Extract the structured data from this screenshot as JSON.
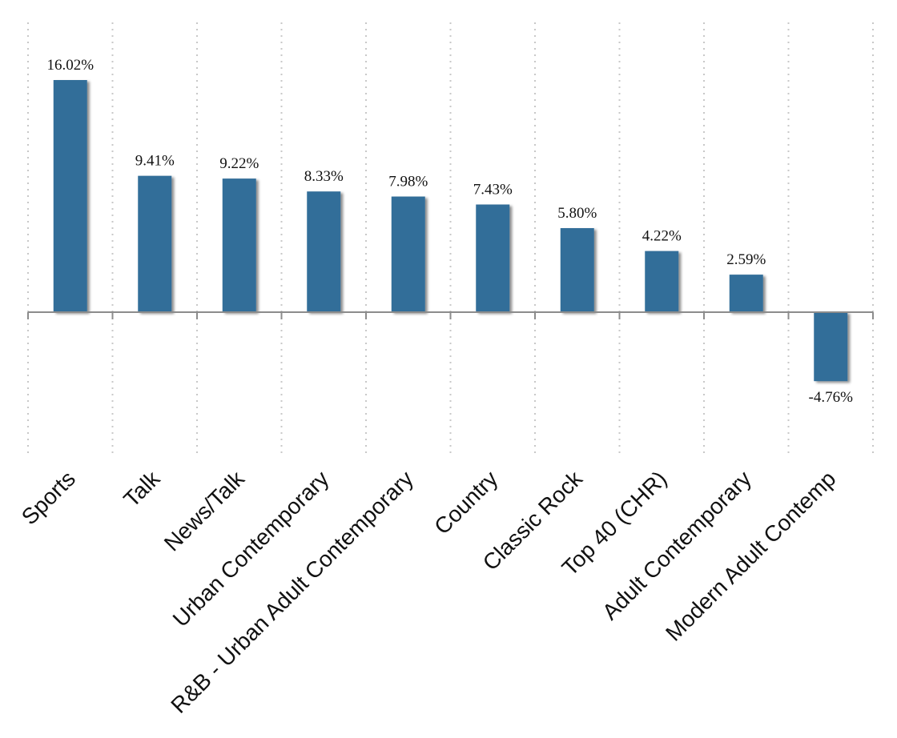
{
  "chart_data": {
    "type": "bar",
    "categories": [
      "Sports",
      "Talk",
      "News/Talk",
      "Urban Contemporary",
      "R&B - Urban Adult Contemporary",
      "Country",
      "Classic Rock",
      "Top 40 (CHR)",
      "Adult Contemporary",
      "Modern Adult Contemp"
    ],
    "values": [
      16.02,
      9.41,
      9.22,
      8.33,
      7.98,
      7.43,
      5.8,
      4.22,
      2.59,
      -4.76
    ],
    "value_labels": [
      "16.02%",
      "9.41%",
      "9.22%",
      "8.33%",
      "7.98%",
      "7.43%",
      "5.80%",
      "4.22%",
      "2.59%",
      "-4.76%"
    ],
    "title": "",
    "xlabel": "",
    "ylabel": "",
    "ylim": [
      -9.7,
      18.5
    ],
    "bar_color": "#336e99",
    "grid": "vertical dotted",
    "legend": "none"
  }
}
